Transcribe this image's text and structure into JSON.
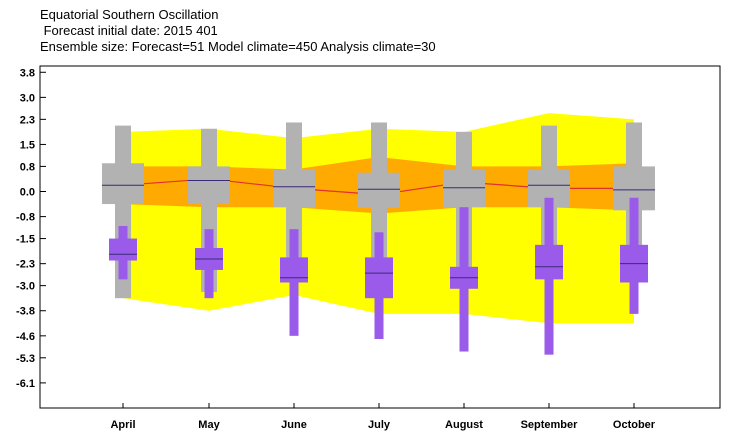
{
  "header": {
    "line1": "Equatorial Southern Oscillation",
    "line2": " Forecast initial date: 2015 401",
    "line3": "Ensemble size: Forecast=51 Model climate=450 Analysis climate=30"
  },
  "colors": {
    "climate_outer": "#ffff00",
    "climate_inner": "#ffaa00",
    "climate_median": "#e03030",
    "forecast_box": "#b2b2b2",
    "analysis_box": "#9a5bea",
    "median_line": "#3a2a7a"
  },
  "chart_data": {
    "type": "box",
    "title": "Equatorial Southern Oscillation",
    "categories": [
      "April",
      "May",
      "June",
      "July",
      "August",
      "September",
      "October"
    ],
    "yticks": [
      "3.8",
      "3.0",
      "2.3",
      "1.5",
      "0.8",
      "0.0",
      "-0.8",
      "-1.5",
      "-2.3",
      "-3.0",
      "-3.8",
      "-4.6",
      "-5.3",
      "-6.1"
    ],
    "ylim": [
      -6.9,
      4.0
    ],
    "model_climate": {
      "outer_low": [
        -3.4,
        -3.8,
        -3.3,
        -3.9,
        -3.9,
        -4.2,
        -4.2
      ],
      "outer_high": [
        1.9,
        2.0,
        1.7,
        2.0,
        1.9,
        2.5,
        2.3
      ],
      "inner_low": [
        -0.4,
        -0.5,
        -0.5,
        -0.7,
        -0.5,
        -0.5,
        -0.6
      ],
      "inner_high": [
        0.8,
        0.8,
        0.7,
        1.1,
        0.8,
        0.8,
        0.9
      ],
      "median": [
        0.2,
        0.4,
        0.1,
        -0.1,
        0.3,
        0.1,
        0.1
      ]
    },
    "forecast": {
      "whisker_low": [
        -3.4,
        -3.2,
        -2.9,
        -2.6,
        -2.6,
        -2.7,
        -2.5
      ],
      "q1": [
        -0.4,
        -0.4,
        -0.5,
        -0.5,
        -0.5,
        -0.5,
        -0.6
      ],
      "q3": [
        0.9,
        0.8,
        0.7,
        0.6,
        0.7,
        0.7,
        0.8
      ],
      "median": [
        0.2,
        0.35,
        0.15,
        0.07,
        0.12,
        0.2,
        0.05
      ],
      "whisker_high": [
        2.1,
        2.0,
        2.2,
        2.2,
        1.9,
        2.1,
        2.2
      ]
    },
    "analysis": {
      "whisker_low": [
        -2.8,
        -3.4,
        -4.6,
        -4.7,
        -5.1,
        -5.2,
        -3.9
      ],
      "q1": [
        -2.2,
        -2.5,
        -2.9,
        -3.4,
        -3.1,
        -2.8,
        -2.9
      ],
      "q3": [
        -1.5,
        -1.8,
        -2.1,
        -2.1,
        -2.4,
        -1.7,
        -1.7
      ],
      "median": [
        -2.0,
        -2.15,
        -2.75,
        -2.6,
        -2.75,
        -2.4,
        -2.3
      ],
      "whisker_high": [
        -1.1,
        -1.2,
        -1.2,
        -1.3,
        -0.5,
        -0.2,
        -0.2
      ]
    }
  }
}
